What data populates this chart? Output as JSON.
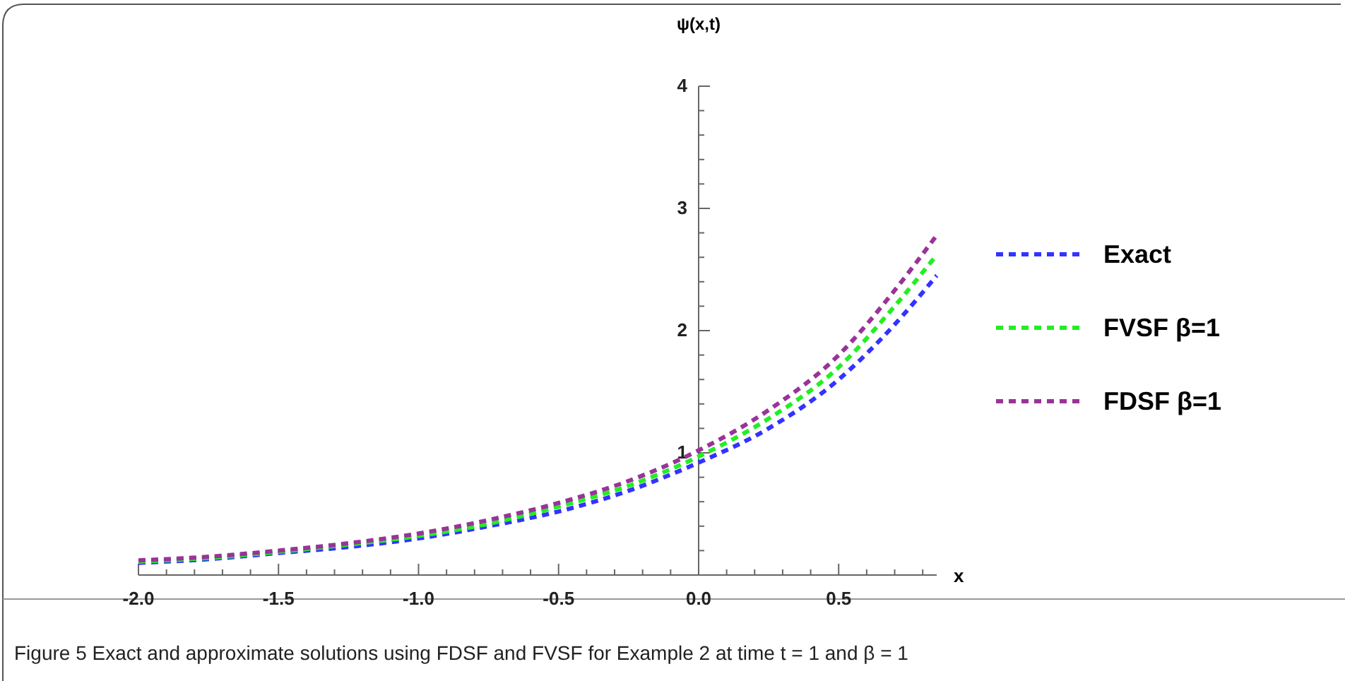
{
  "chart_data": {
    "type": "line",
    "xlabel": "x",
    "ylabel": "ψ(x,t)",
    "x": [
      -2,
      -1.75,
      -1.5,
      -1.25,
      -1,
      -0.75,
      -0.5,
      -0.25,
      0,
      0.25,
      0.5,
      0.7,
      0.85
    ],
    "series": [
      {
        "name": "Exact",
        "color": "#3333ff",
        "values": [
          0.1,
          0.13,
          0.18,
          0.23,
          0.3,
          0.4,
          0.52,
          0.69,
          0.92,
          1.2,
          1.6,
          2.05,
          2.45
        ]
      },
      {
        "name": "FVSF β=1",
        "color": "#22ee22",
        "values": [
          0.11,
          0.14,
          0.19,
          0.25,
          0.32,
          0.42,
          0.56,
          0.73,
          0.97,
          1.28,
          1.7,
          2.2,
          2.62
        ]
      },
      {
        "name": "FDSF β=1",
        "color": "#993399",
        "values": [
          0.12,
          0.15,
          0.2,
          0.26,
          0.34,
          0.45,
          0.59,
          0.77,
          1.02,
          1.35,
          1.8,
          2.33,
          2.78
        ]
      }
    ],
    "xlim": [
      -2,
      0.85
    ],
    "ylim": [
      0,
      4
    ],
    "xticks": [
      {
        "value": -2,
        "label": "-2.0"
      },
      {
        "value": -1.9,
        "label": null
      },
      {
        "value": -1.8,
        "label": null
      },
      {
        "value": -1.7,
        "label": null
      },
      {
        "value": -1.6,
        "label": null
      },
      {
        "value": -1.5,
        "label": "-1.5"
      },
      {
        "value": -1.4,
        "label": null
      },
      {
        "value": -1.3,
        "label": null
      },
      {
        "value": -1.2,
        "label": null
      },
      {
        "value": -1.1,
        "label": null
      },
      {
        "value": -1,
        "label": "-1.0"
      },
      {
        "value": -0.9,
        "label": null
      },
      {
        "value": -0.8,
        "label": null
      },
      {
        "value": -0.7,
        "label": null
      },
      {
        "value": -0.6,
        "label": null
      },
      {
        "value": -0.5,
        "label": "-0.5"
      },
      {
        "value": -0.4,
        "label": null
      },
      {
        "value": -0.3,
        "label": null
      },
      {
        "value": -0.2,
        "label": null
      },
      {
        "value": -0.1,
        "label": null
      },
      {
        "value": 0,
        "label": "0.0"
      },
      {
        "value": 0.1,
        "label": null
      },
      {
        "value": 0.2,
        "label": null
      },
      {
        "value": 0.3,
        "label": null
      },
      {
        "value": 0.4,
        "label": null
      },
      {
        "value": 0.5,
        "label": "0.5"
      },
      {
        "value": 0.6,
        "label": null
      },
      {
        "value": 0.7,
        "label": null
      },
      {
        "value": 0.8,
        "label": null
      }
    ],
    "yticks": [
      {
        "value": 0.2,
        "label": null
      },
      {
        "value": 0.4,
        "label": null
      },
      {
        "value": 0.6,
        "label": null
      },
      {
        "value": 0.8,
        "label": null
      },
      1,
      {
        "value": 1.2,
        "label": null
      },
      {
        "value": 1.4,
        "label": null
      },
      {
        "value": 1.6,
        "label": null
      },
      {
        "value": 1.8,
        "label": null
      },
      2,
      {
        "value": 2.2,
        "label": null
      },
      {
        "value": 2.4,
        "label": null
      },
      {
        "value": 2.6,
        "label": null
      },
      {
        "value": 2.8,
        "label": null
      },
      3,
      {
        "value": 3.2,
        "label": null
      },
      {
        "value": 3.4,
        "label": null
      },
      {
        "value": 3.6,
        "label": null
      },
      {
        "value": 3.8,
        "label": null
      },
      4
    ],
    "legend": "right",
    "line_style": "dashed",
    "grid": false,
    "annotations": [
      "Figure 5  Exact and approximate solutions using FDSF and FVSF for Example 2 at time t = 1 and β = 1"
    ]
  }
}
